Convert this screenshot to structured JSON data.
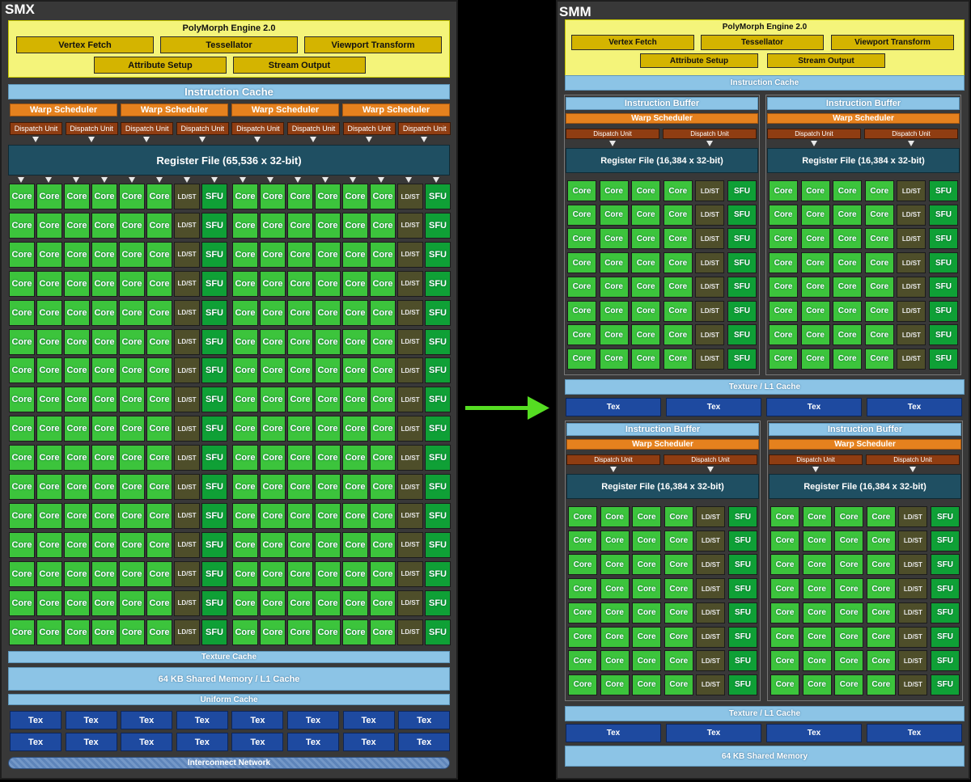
{
  "smx": {
    "title": "SMX",
    "polymorph": {
      "title": "PolyMorph Engine 2.0",
      "row1": [
        "Vertex Fetch",
        "Tessellator",
        "Viewport Transform"
      ],
      "row2": [
        "Attribute Setup",
        "Stream Output"
      ]
    },
    "instruction_cache": "Instruction Cache",
    "warp_scheduler": "Warp Scheduler",
    "dispatch_unit": "Dispatch Unit",
    "register_file": "Register File (65,536 x 32-bit)",
    "texture_cache": "Texture Cache",
    "shared_memory": "64 KB Shared Memory / L1 Cache",
    "uniform_cache": "Uniform Cache",
    "tex_label": "Tex",
    "interconnect": "Interconnect Network"
  },
  "smm": {
    "title": "SMM",
    "polymorph": {
      "title": "PolyMorph Engine 2.0",
      "row1": [
        "Vertex Fetch",
        "Tessellator",
        "Viewport Transform"
      ],
      "row2": [
        "Attribute Setup",
        "Stream Output"
      ]
    },
    "instruction_cache": "Instruction Cache",
    "instruction_buffer": "Instruction Buffer",
    "warp_scheduler": "Warp Scheduler",
    "dispatch_unit": "Dispatch Unit",
    "register_file": "Register File (16,384 x 32-bit)",
    "texture_l1_cache": "Texture / L1 Cache",
    "tex_label": "Tex",
    "shared_memory": "64 KB Shared Memory"
  },
  "units": {
    "core": "Core",
    "ldst": "LD/ST",
    "sfu": "SFU"
  },
  "colors": {
    "core": "#3cc43c",
    "sfu": "#0fa036",
    "ldst": "#4e4e2a",
    "warp_scheduler": "#e5811e",
    "dispatch_unit": "#8f3d12",
    "register_file": "#1f4f62",
    "cache": "#8cc4e6",
    "tex": "#1e4aa0",
    "polymorph": "#f4f47a",
    "transition_arrow": "#55dd22"
  }
}
